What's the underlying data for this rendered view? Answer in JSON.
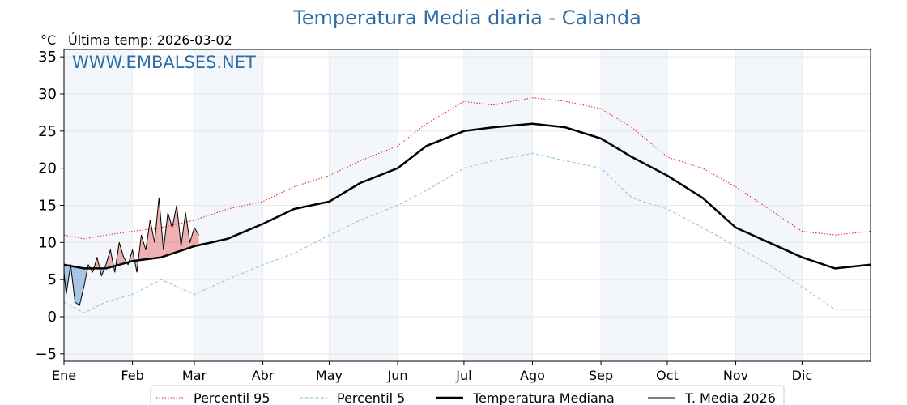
{
  "chart_data": {
    "type": "line",
    "title": "Temperatura Media diaria - Calanda",
    "unit_label": "°C",
    "last_temp": "Última temp: 2026-03-02",
    "watermark": "WWW.EMBALSES.NET",
    "ylim": [
      -6,
      36
    ],
    "yticks": [
      -5,
      0,
      5,
      10,
      15,
      20,
      25,
      30,
      35
    ],
    "ytick_labels": [
      "−5",
      "0",
      "5",
      "10",
      "15",
      "20",
      "25",
      "30",
      "35"
    ],
    "x_range_days": [
      1,
      366
    ],
    "months": [
      {
        "label": "Ene",
        "day": 1
      },
      {
        "label": "Feb",
        "day": 32
      },
      {
        "label": "Mar",
        "day": 60
      },
      {
        "label": "Abr",
        "day": 91
      },
      {
        "label": "May",
        "day": 121
      },
      {
        "label": "Jun",
        "day": 152
      },
      {
        "label": "Jul",
        "day": 182
      },
      {
        "label": "Ago",
        "day": 213
      },
      {
        "label": "Sep",
        "day": 244
      },
      {
        "label": "Oct",
        "day": 274
      },
      {
        "label": "Nov",
        "day": 305
      },
      {
        "label": "Dic",
        "day": 335
      }
    ],
    "series": [
      {
        "name": "Percentil 95",
        "color": "#e31a1c",
        "style": "dotted",
        "x": [
          1,
          10,
          20,
          32,
          45,
          60,
          75,
          91,
          105,
          121,
          135,
          152,
          165,
          182,
          195,
          213,
          228,
          244,
          258,
          274,
          290,
          305,
          320,
          335,
          350,
          366
        ],
        "y": [
          11,
          10.5,
          11,
          11.5,
          12,
          13,
          14.5,
          15.5,
          17.5,
          19,
          21,
          23,
          26,
          29,
          28.5,
          29.5,
          29,
          28,
          25.5,
          21.5,
          20,
          17.5,
          14.5,
          11.5,
          11,
          11.5
        ]
      },
      {
        "name": "Percentil 5",
        "color": "#9ecae1",
        "style": "dashed",
        "x": [
          1,
          10,
          20,
          32,
          45,
          60,
          75,
          91,
          105,
          121,
          135,
          152,
          165,
          182,
          195,
          213,
          228,
          244,
          258,
          274,
          290,
          305,
          320,
          335,
          350,
          366
        ],
        "y": [
          2,
          0.5,
          2,
          3,
          5,
          3,
          5,
          7,
          8.5,
          11,
          13,
          15,
          17,
          20,
          21,
          22,
          21,
          20,
          16,
          14.5,
          12,
          9.5,
          7,
          4,
          1,
          1
        ]
      },
      {
        "name": "Temperatura Mediana",
        "color": "#000000",
        "style": "solid-thick",
        "x": [
          1,
          10,
          20,
          32,
          45,
          60,
          75,
          91,
          105,
          121,
          135,
          152,
          165,
          182,
          195,
          213,
          228,
          244,
          258,
          274,
          290,
          305,
          320,
          335,
          350,
          366
        ],
        "y": [
          7,
          6.5,
          6.5,
          7.5,
          8,
          9.5,
          10.5,
          12.5,
          14.5,
          15.5,
          18,
          20,
          23,
          25,
          25.5,
          26,
          25.5,
          24,
          21.5,
          19,
          16,
          12,
          10,
          8,
          6.5,
          7
        ]
      },
      {
        "name": "T. Media 2026",
        "color": "#000000",
        "style": "solid-thin",
        "x": [
          1,
          2,
          4,
          6,
          8,
          10,
          12,
          14,
          16,
          18,
          20,
          22,
          24,
          26,
          28,
          30,
          32,
          34,
          36,
          38,
          40,
          42,
          44,
          46,
          48,
          50,
          52,
          54,
          56,
          58,
          60,
          62
        ],
        "y": [
          6,
          3,
          7,
          2,
          1.5,
          4,
          7,
          6,
          8,
          5.5,
          7,
          9,
          6,
          10,
          8,
          7,
          9,
          6,
          11,
          9,
          13,
          10,
          16,
          9,
          14,
          12,
          15,
          9.5,
          14,
          10,
          12,
          11
        ]
      }
    ],
    "legend": {
      "placement": "bottom-center",
      "entries": [
        "Percentil 95",
        "Percentil 5",
        "Temperatura Mediana",
        "T. Media 2026"
      ]
    },
    "fill_above_color": "#e07070",
    "fill_below_color": "#6a9fd0"
  }
}
